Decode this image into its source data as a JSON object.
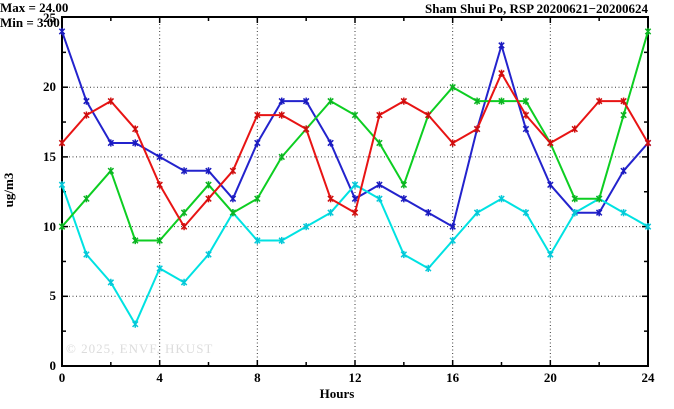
{
  "watermark": "© 2025, ENVF, HKUST",
  "annotation": {
    "max_label": "Max = 24.00",
    "min_label": "Min =  3.00"
  },
  "chart_data": {
    "type": "line",
    "title": "Sham Shui Po, RSP 20200621−20200624",
    "xlabel": "Hours",
    "ylabel": "ug/m3",
    "xlim": [
      0,
      24
    ],
    "ylim": [
      0,
      25
    ],
    "x_ticks": [
      0,
      4,
      8,
      12,
      16,
      20,
      24
    ],
    "x_minor_step": 2,
    "y_ticks": [
      0,
      5,
      10,
      15,
      20,
      25
    ],
    "y_minor_step": 2.5,
    "grid": true,
    "legend_position": "top-right-inside",
    "annotations": [
      "Max = 24.00",
      "Min =  3.00"
    ],
    "x": [
      0,
      1,
      2,
      3,
      4,
      5,
      6,
      7,
      8,
      9,
      10,
      11,
      12,
      13,
      14,
      15,
      16,
      17,
      18,
      19,
      20,
      21,
      22,
      23,
      24
    ],
    "series": [
      {
        "name": "blue-line",
        "color": "#2323cd",
        "marker_color": "#1a1abf",
        "values": [
          24,
          19,
          16,
          16,
          15,
          14,
          14,
          12,
          16,
          19,
          19,
          16,
          12,
          13,
          12,
          11,
          10,
          17,
          23,
          17,
          13,
          11,
          11,
          14,
          16
        ]
      },
      {
        "name": "cyan-line",
        "color": "#00e2e2",
        "marker_color": "#04c8d8",
        "values": [
          13,
          8,
          6,
          3,
          7,
          6,
          8,
          11,
          9,
          9,
          10,
          11,
          13,
          12,
          8,
          7,
          9,
          11,
          12,
          11,
          8,
          11,
          12,
          11,
          10
        ]
      },
      {
        "name": "green-line",
        "color": "#0dce22",
        "marker_color": "#0bb421",
        "values": [
          10,
          12,
          14,
          9,
          9,
          11,
          13,
          11,
          12,
          15,
          17,
          19,
          18,
          16,
          13,
          18,
          20,
          19,
          19,
          19,
          16,
          12,
          12,
          18,
          24
        ]
      },
      {
        "name": "red-line",
        "color": "#e81414",
        "marker_color": "#cf0d0d",
        "values": [
          16,
          18,
          19,
          17,
          13,
          10,
          12,
          14,
          18,
          18,
          17,
          12,
          11,
          18,
          19,
          18,
          16,
          17,
          21,
          18,
          16,
          17,
          19,
          19,
          16
        ]
      }
    ]
  }
}
